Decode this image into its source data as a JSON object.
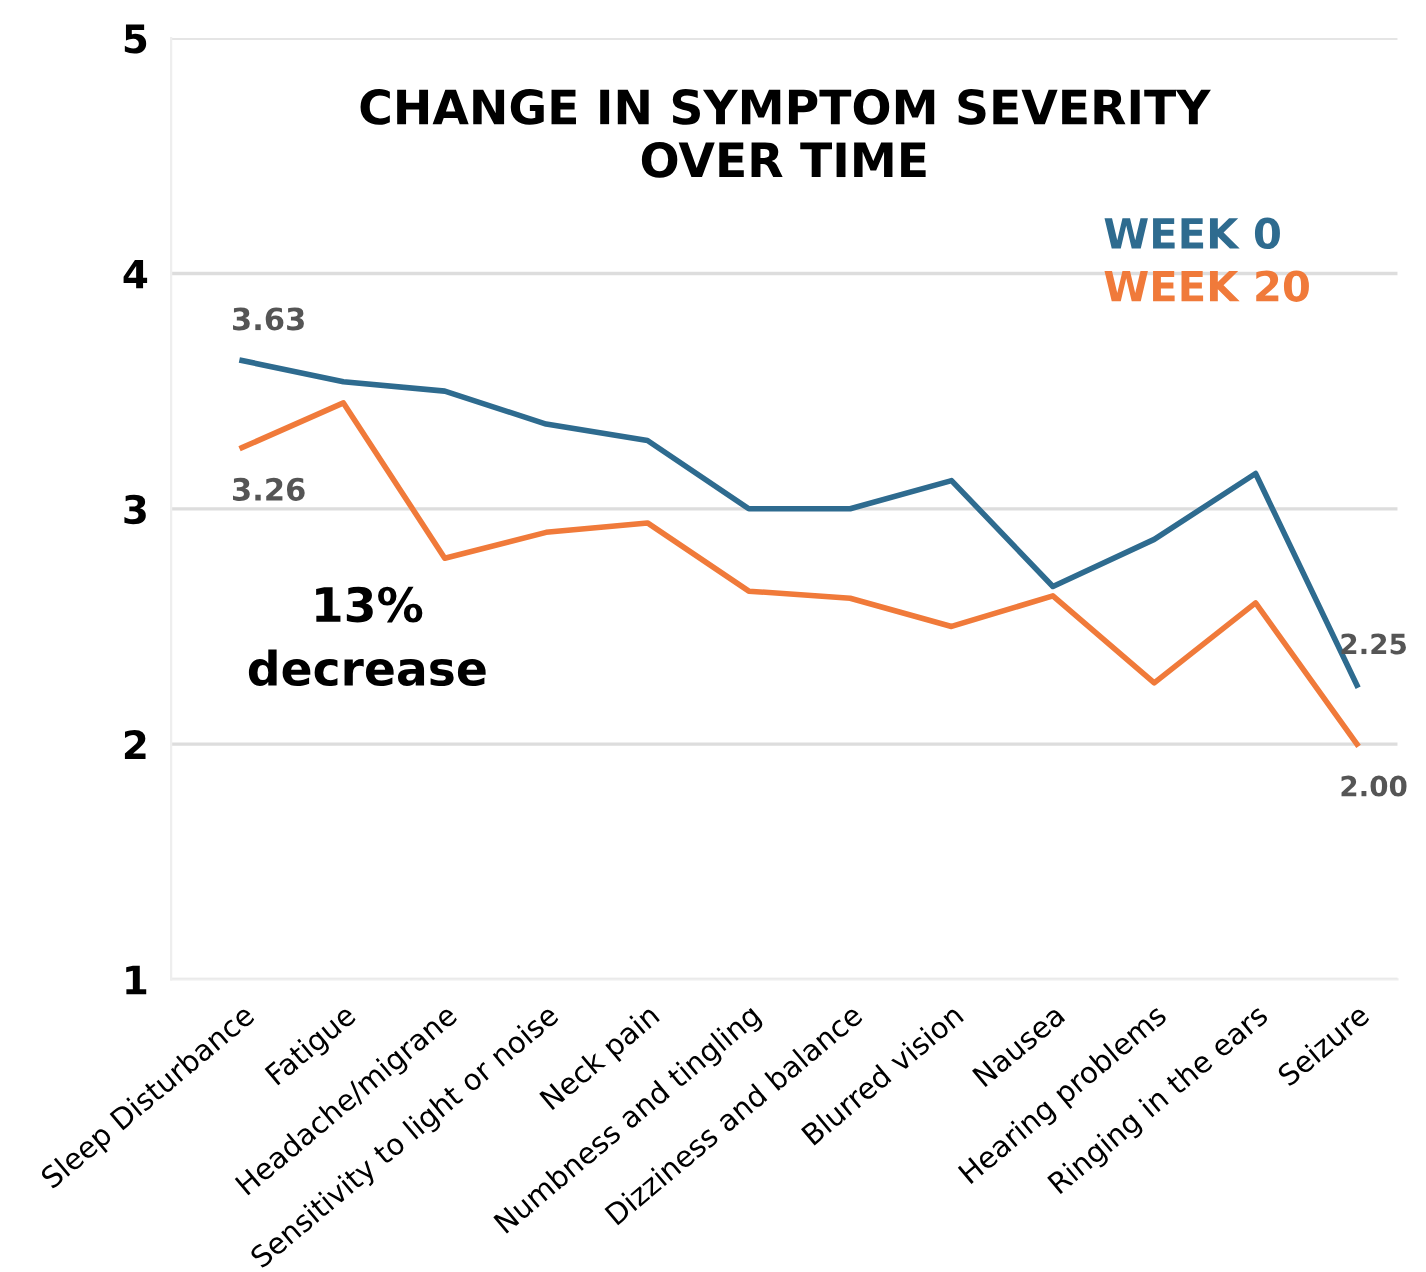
{
  "chart_data": {
    "type": "line",
    "title": "CHANGE IN SYMPTOM SEVERITY\nOVER TIME",
    "categories": [
      "Sleep Disturbance",
      "Fatigue",
      "Headache/migrane",
      "Sensitivity to light or noise",
      "Neck pain",
      "Numbness and tingling",
      "Dizziness and balance",
      "Blurred vision",
      "Nausea",
      "Hearing problems",
      "Ringing in the ears",
      "Seizure"
    ],
    "series": [
      {
        "name": "WEEK 0",
        "color": "#2e6b8f",
        "values": [
          3.63,
          3.54,
          3.5,
          3.36,
          3.29,
          3.0,
          3.0,
          3.12,
          2.67,
          2.87,
          3.15,
          2.25
        ],
        "value_labels": [
          "3.63",
          null,
          null,
          null,
          null,
          null,
          null,
          null,
          null,
          null,
          null,
          "2.25"
        ]
      },
      {
        "name": "WEEK 20",
        "color": "#f07a3a",
        "values": [
          3.26,
          3.45,
          2.79,
          2.9,
          2.94,
          2.65,
          2.62,
          2.5,
          2.63,
          2.26,
          2.6,
          2.0
        ],
        "value_labels": [
          "3.26",
          null,
          null,
          null,
          null,
          null,
          null,
          null,
          null,
          null,
          null,
          "2.00"
        ]
      }
    ],
    "ylim": [
      1,
      5
    ],
    "yticks": [
      1,
      2,
      3,
      4,
      5
    ],
    "grid": "y",
    "legend": "top right",
    "marker": "none",
    "line_style": "solid",
    "annotations": [
      "13%\ndecrease"
    ]
  }
}
